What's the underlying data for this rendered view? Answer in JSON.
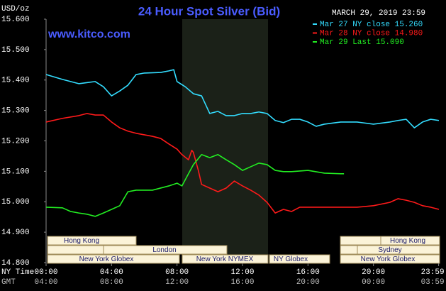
{
  "chart_data": {
    "type": "line",
    "title": "24 Hour Spot Silver (Bid)",
    "unit_label": "USD/oz",
    "timestamp": "MARCH 29, 2019 23:59",
    "source": "www.kitco.com",
    "x_row_label": "NY Time",
    "x2_row_label": "GMT",
    "xlim": [
      0,
      24
    ],
    "xticks": [
      {
        "value": 0,
        "label": "00:00"
      },
      {
        "value": 4,
        "label": "04:00"
      },
      {
        "value": 8,
        "label": "08:00"
      },
      {
        "value": 12,
        "label": "12:00"
      },
      {
        "value": 16,
        "label": "16:00"
      },
      {
        "value": 20,
        "label": "20:00"
      },
      {
        "value": 23.983,
        "label": "23:59"
      }
    ],
    "x2ticklabels": [
      "04:00",
      "08:00",
      "12:00",
      "16:00",
      "20:00",
      "00:00",
      "03:59"
    ],
    "ylim": [
      14.8,
      15.6
    ],
    "yticks": [
      {
        "value": 14.8,
        "label": "14.800"
      },
      {
        "value": 14.9,
        "label": "14.900"
      },
      {
        "value": 15.0,
        "label": "15.000"
      },
      {
        "value": 15.1,
        "label": "15.100"
      },
      {
        "value": 15.2,
        "label": "15.200"
      },
      {
        "value": 15.3,
        "label": "15.300"
      },
      {
        "value": 15.4,
        "label": "15.400"
      },
      {
        "value": 15.5,
        "label": "15.500"
      },
      {
        "value": 15.6,
        "label": "15.600"
      }
    ],
    "grid": false,
    "legend": "top-right",
    "sessions": [
      "Hong Kong",
      "London",
      "New York Globex",
      "New York NYMEX",
      "NY Globex",
      "Hong Kong",
      "Sydney",
      "New York Globex"
    ],
    "series": [
      {
        "name": "Mar 27 NY close 15.260",
        "color": "#33ddff",
        "x": [
          0,
          1,
          2,
          3,
          3.5,
          4,
          4.5,
          5,
          5.5,
          6,
          7,
          7.5,
          7.8,
          8,
          8.5,
          9,
          9.5,
          10,
          10.5,
          11,
          11.5,
          12,
          12.5,
          13,
          13.5,
          14,
          14.5,
          15,
          15.5,
          16,
          16.5,
          17,
          18,
          19,
          20,
          21,
          21.5,
          22,
          22.5,
          23,
          23.5,
          24
        ],
        "values": [
          15.418,
          15.402,
          15.388,
          15.395,
          15.378,
          15.348,
          15.364,
          15.383,
          15.418,
          15.423,
          15.425,
          15.43,
          15.434,
          15.395,
          15.378,
          15.355,
          15.348,
          15.29,
          15.297,
          15.283,
          15.283,
          15.29,
          15.29,
          15.295,
          15.29,
          15.267,
          15.26,
          15.271,
          15.271,
          15.262,
          15.248,
          15.255,
          15.262,
          15.262,
          15.255,
          15.262,
          15.267,
          15.271,
          15.243,
          15.262,
          15.271,
          15.267
        ]
      },
      {
        "name": "Mar 28 NY close 14.980",
        "color": "#ff1a1a",
        "x": [
          0,
          1,
          2,
          2.5,
          3,
          3.5,
          4,
          4.5,
          5,
          5.5,
          6,
          6.5,
          7,
          7.5,
          8,
          8.3,
          8.7,
          8.9,
          9,
          9.3,
          9.5,
          10,
          10.5,
          11,
          11.5,
          12,
          12.5,
          13,
          13.5,
          14,
          14.5,
          15,
          15.5,
          16,
          17,
          18,
          19,
          20,
          21,
          21.5,
          22,
          22.5,
          23,
          23.5,
          24
        ],
        "values": [
          15.262,
          15.274,
          15.283,
          15.29,
          15.285,
          15.285,
          15.262,
          15.243,
          15.232,
          15.225,
          15.22,
          15.215,
          15.208,
          15.19,
          15.173,
          15.155,
          15.138,
          15.169,
          15.162,
          15.103,
          15.057,
          15.045,
          15.033,
          15.045,
          15.068,
          15.052,
          15.038,
          15.022,
          14.998,
          14.963,
          14.975,
          14.968,
          14.982,
          14.982,
          14.982,
          14.982,
          14.982,
          14.987,
          14.998,
          15.01,
          15.005,
          14.998,
          14.987,
          14.982,
          14.975
        ]
      },
      {
        "name": "Mar 29 Last 15.090",
        "color": "#22ee22",
        "x": [
          0,
          1,
          1.5,
          2,
          2.5,
          3,
          3.5,
          4,
          4.5,
          5,
          5.5,
          6,
          6.5,
          7,
          7.5,
          8,
          8.3,
          8.7,
          9,
          9.5,
          10,
          10.5,
          11,
          11.5,
          12,
          12.5,
          13,
          13.5,
          14,
          14.5,
          15,
          16,
          17,
          18,
          18.2
        ],
        "values": [
          14.982,
          14.98,
          14.968,
          14.963,
          14.959,
          14.952,
          14.963,
          14.975,
          14.987,
          15.033,
          15.038,
          15.038,
          15.038,
          15.045,
          15.052,
          15.061,
          15.052,
          15.092,
          15.122,
          15.155,
          15.145,
          15.155,
          15.138,
          15.122,
          15.103,
          15.115,
          15.127,
          15.122,
          15.103,
          15.099,
          15.099,
          15.103,
          15.094,
          15.092,
          15.092
        ]
      }
    ]
  }
}
